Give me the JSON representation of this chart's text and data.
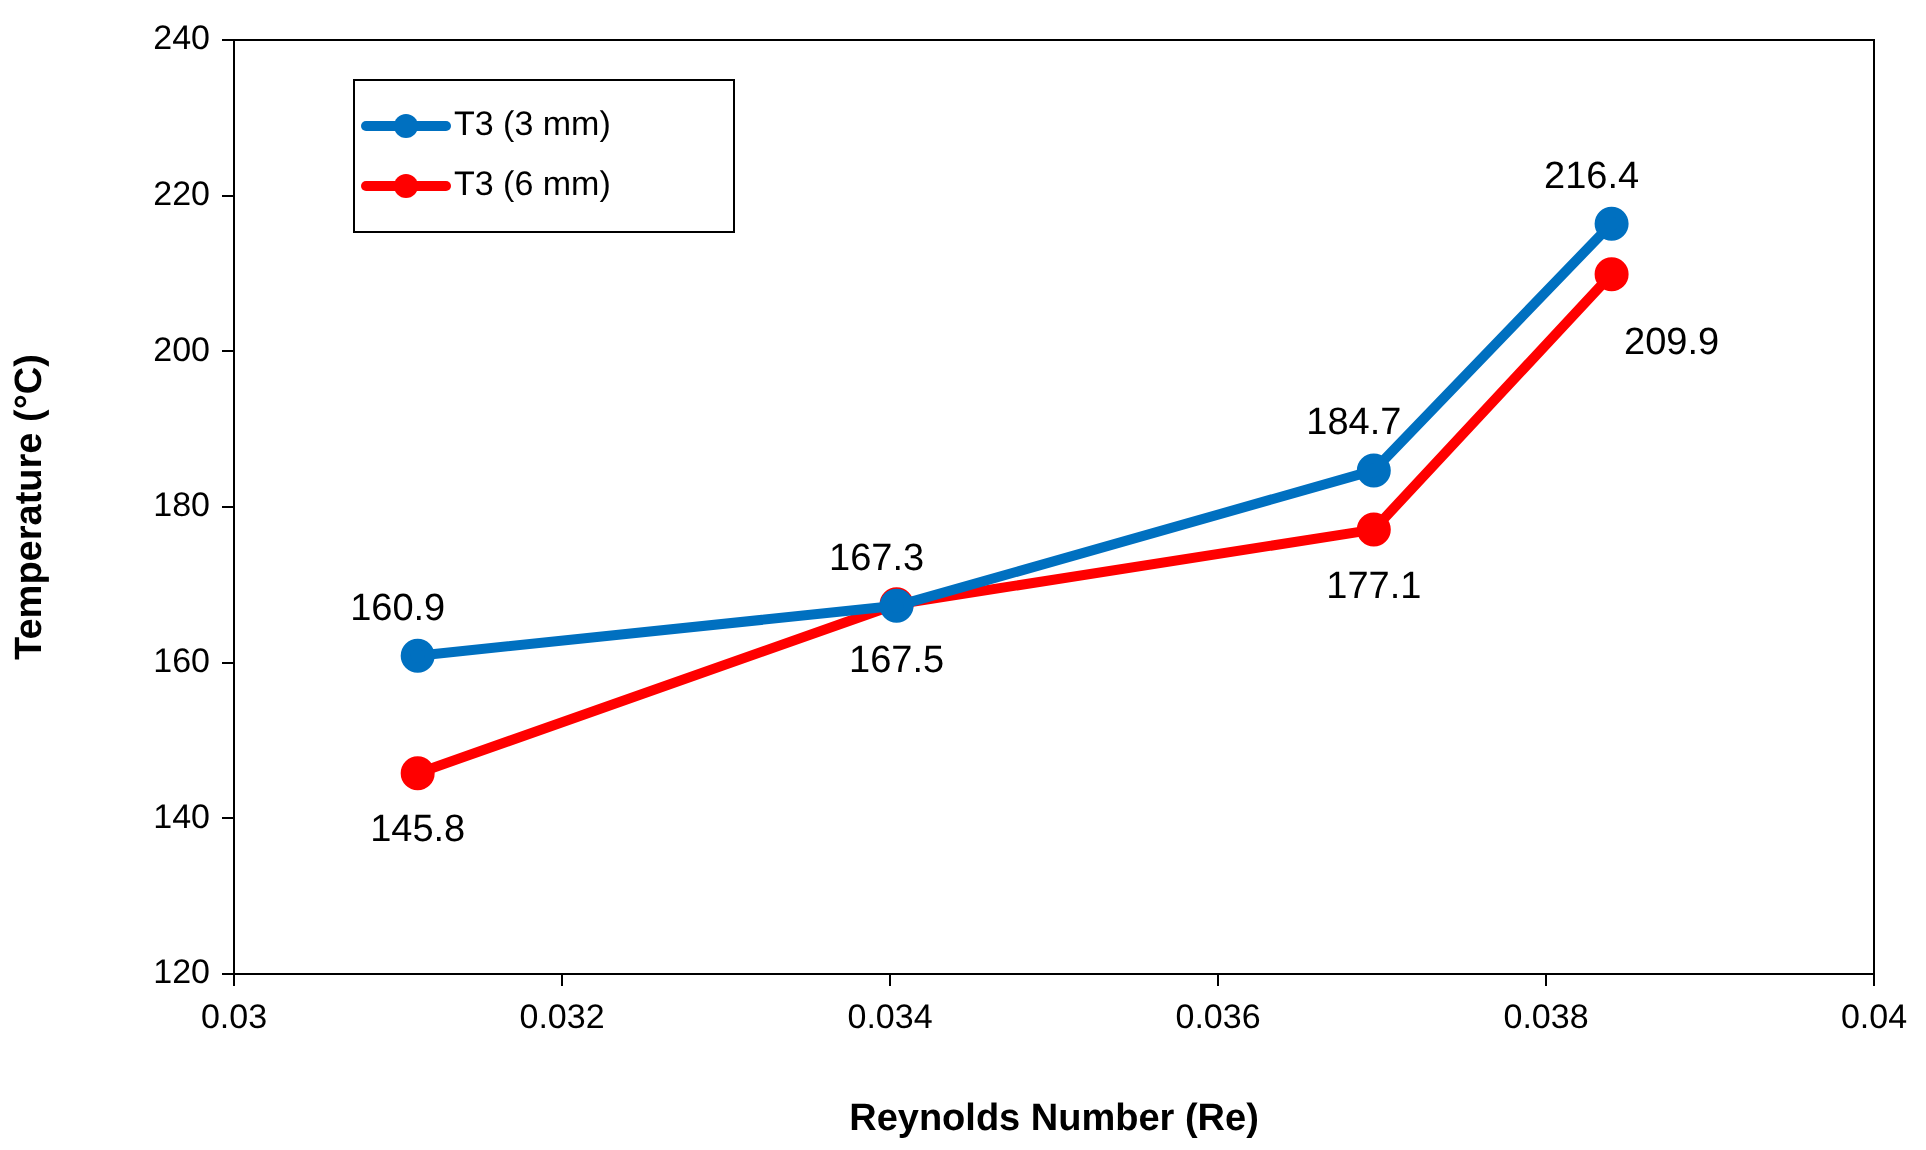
{
  "chart_data": {
    "type": "line",
    "xlabel": "Reynolds Number (Re)",
    "ylabel": "Temperature (°C)",
    "x": [
      0.03112,
      0.03404,
      0.03695,
      0.0384
    ],
    "series": [
      {
        "name": "T3 (3 mm)",
        "color": "#0070c0",
        "values": [
          160.9,
          167.3,
          184.7,
          216.4
        ]
      },
      {
        "name": "T3 (6 mm)",
        "color": "#ff0000",
        "values": [
          145.8,
          167.5,
          177.1,
          209.9
        ]
      }
    ],
    "xlim": [
      0.03,
      0.04
    ],
    "xticks": [
      0.03,
      0.032,
      0.034,
      0.036,
      0.038,
      0.04
    ],
    "ylim": [
      120,
      240
    ],
    "yticks": [
      120,
      140,
      160,
      180,
      200,
      220,
      240
    ],
    "grid": false,
    "legend": "top left",
    "marker": "circle",
    "line_style": "solid",
    "data_labels": true
  }
}
